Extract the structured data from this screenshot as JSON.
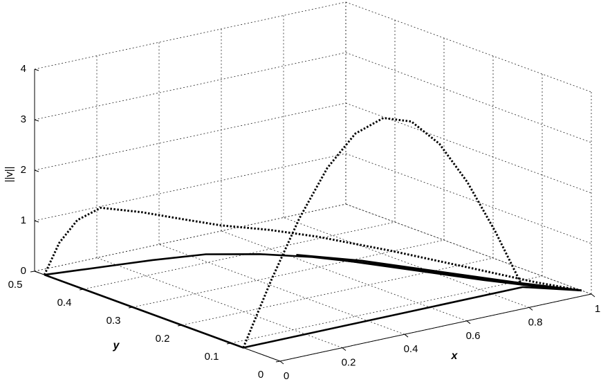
{
  "chart_data": {
    "type": "line3d",
    "xlabel": "x",
    "ylabel": "y",
    "zlabel": "||v||",
    "xlim": [
      0,
      1
    ],
    "ylim": [
      0,
      0.5
    ],
    "zlim": [
      0,
      4
    ],
    "xticks": [
      0,
      0.2,
      0.4,
      0.6,
      0.8,
      1
    ],
    "yticks": [
      0,
      0.1,
      0.2,
      0.3,
      0.4,
      0.5
    ],
    "zticks": [
      0,
      1,
      2,
      3,
      4
    ],
    "grid": true,
    "series": [
      {
        "color": "#000000",
        "style": "dotted",
        "x": [
          0,
          0.04,
          0.09,
          0.15,
          0.25,
          0.35,
          0.44,
          0.55,
          0.64,
          0.75,
          0.85,
          0.93,
          1
        ],
        "y": [
          0.48,
          0.475,
          0.47,
          0.46,
          0.44,
          0.42,
          0.4,
          0.37,
          0.33,
          0.25,
          0.15,
          0.07,
          0.02
        ],
        "z": [
          0,
          0.6,
          1.0,
          1.2,
          1.05,
          0.85,
          0.68,
          0.55,
          0.44,
          0.3,
          0.18,
          0.08,
          0
        ]
      },
      {
        "color": "#000000",
        "style": "dotted",
        "x": [
          0,
          0.09,
          0.18,
          0.27,
          0.36,
          0.45,
          0.54,
          0.63,
          0.72,
          0.81,
          0.9
        ],
        "y": [
          0.075,
          0.075,
          0.075,
          0.075,
          0.075,
          0.075,
          0.075,
          0.075,
          0.075,
          0.075,
          0.076
        ],
        "z": [
          0,
          1.22,
          2.32,
          3.2,
          3.76,
          3.95,
          3.76,
          3.2,
          2.32,
          1.22,
          0
        ]
      },
      {
        "color": "#000000",
        "style": "solid",
        "x": [
          0,
          0.1,
          0.2,
          0.3,
          0.44,
          0.55,
          0.64,
          0.75,
          0.85,
          0.93,
          1
        ],
        "y": [
          0.48,
          0.47,
          0.46,
          0.45,
          0.43,
          0.39,
          0.34,
          0.25,
          0.15,
          0.07,
          0.02
        ],
        "z": [
          0,
          0,
          0,
          0,
          0,
          0,
          0,
          0,
          0,
          0,
          0
        ]
      },
      {
        "color": "#000000",
        "style": "solid",
        "x": [
          0.62,
          0.72,
          0.82,
          0.92,
          1
        ],
        "y": [
          0.36,
          0.29,
          0.19,
          0.09,
          0.02
        ],
        "z": [
          0,
          0,
          0,
          0,
          0
        ]
      },
      {
        "color": "#000000",
        "style": "solid",
        "x": [
          0.66,
          0.76,
          0.86,
          0.94,
          1
        ],
        "y": [
          0.33,
          0.23,
          0.13,
          0.06,
          0.02
        ],
        "z": [
          0,
          0,
          0,
          0,
          0
        ]
      },
      {
        "color": "#000000",
        "style": "solid",
        "x": [
          0,
          0,
          0.9,
          1
        ],
        "y": [
          0.48,
          0.075,
          0.076,
          0.02
        ],
        "z": [
          0,
          0,
          0,
          0
        ]
      }
    ]
  }
}
